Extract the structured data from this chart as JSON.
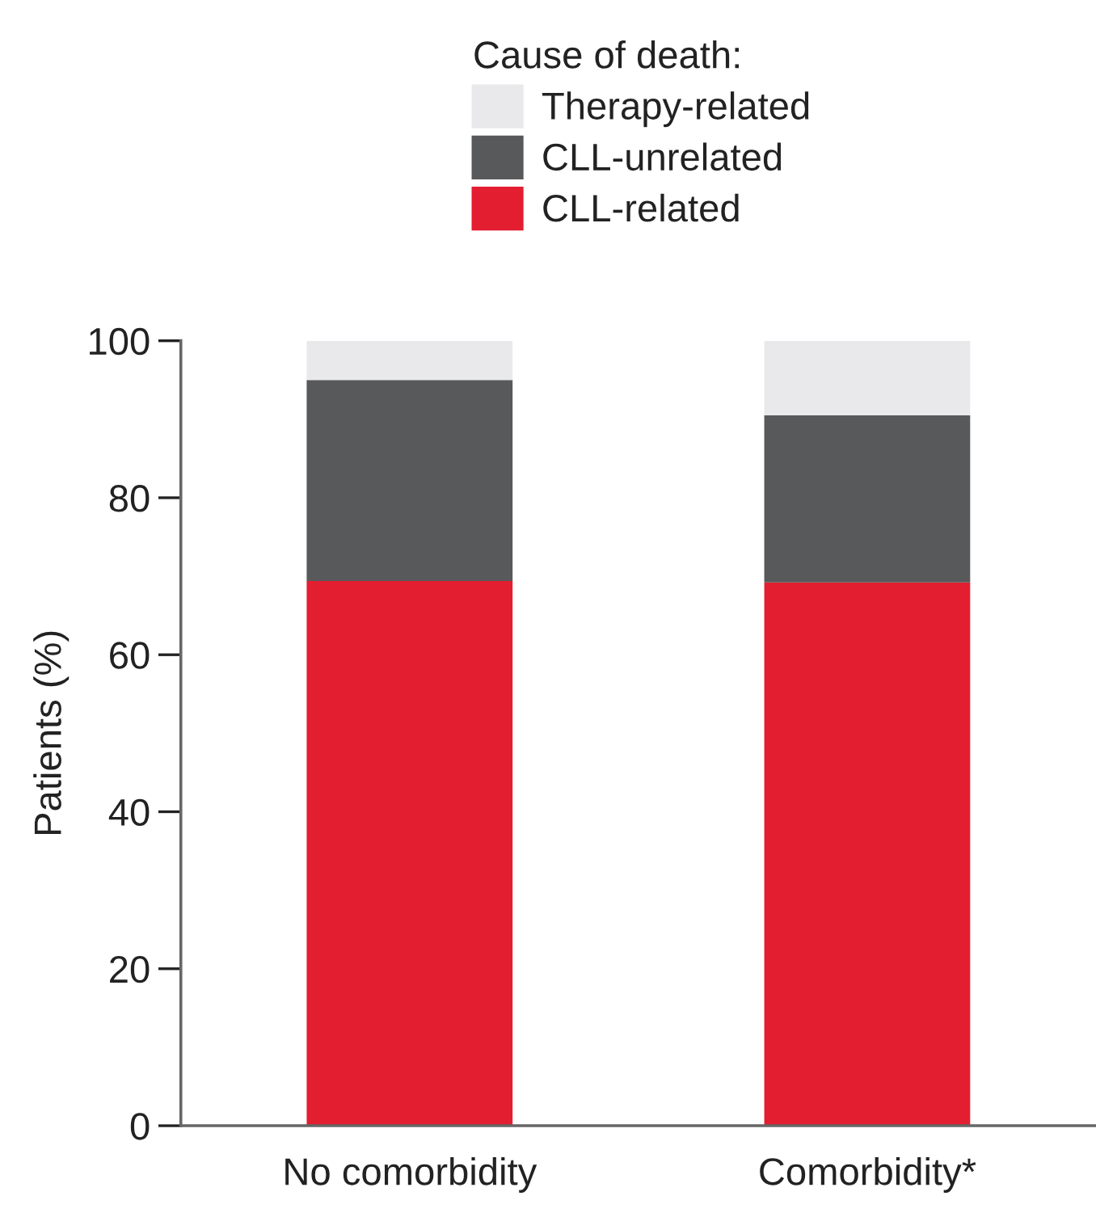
{
  "chart_data": {
    "type": "bar",
    "stacked": true,
    "ylabel": "Patients (%)",
    "legend_title": "Cause of death:",
    "legend": "top",
    "categories": [
      "No comorbidity",
      "Comorbidity*"
    ],
    "series": [
      {
        "name": "CLL-related",
        "color": "#e31e30",
        "values": [
          69.4,
          69.2
        ]
      },
      {
        "name": "CLL-unrelated",
        "color": "#58595b",
        "values": [
          25.6,
          21.3
        ]
      },
      {
        "name": "Therapy-related",
        "color": "#e9e9eb",
        "values": [
          5.0,
          9.5
        ]
      }
    ],
    "ylim": [
      0,
      100
    ],
    "yticks": [
      0,
      20,
      40,
      60,
      80,
      100
    ],
    "grid": false
  }
}
